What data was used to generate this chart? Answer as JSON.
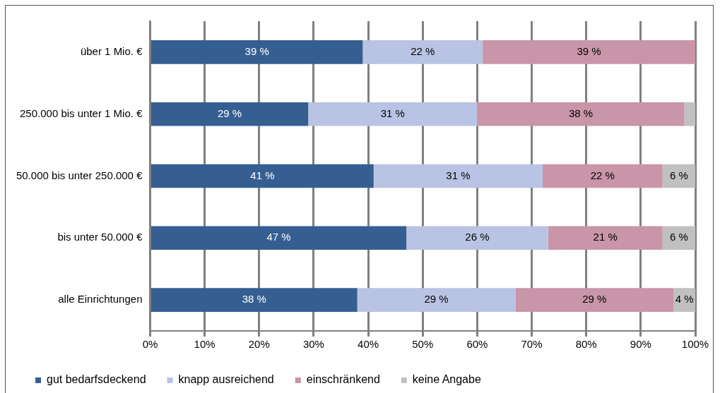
{
  "chart_data": {
    "type": "bar",
    "orientation": "horizontal",
    "stacked": true,
    "categories": [
      "über 1 Mio. €",
      "250.000 bis unter 1 Mio. €",
      "50.000 bis unter 250.000 €",
      "bis unter 50.000 €",
      "alle Einrichtungen"
    ],
    "series": [
      {
        "name": "gut bedarfsdeckend",
        "color": "#365f91",
        "values": [
          39,
          29,
          41,
          47,
          38
        ],
        "value_labels": [
          "39 %",
          "29 %",
          "41 %",
          "47 %",
          "38 %"
        ]
      },
      {
        "name": "knapp ausreichend",
        "color": "#b9c3e3",
        "values": [
          22,
          31,
          31,
          26,
          29
        ],
        "value_labels": [
          "22 %",
          "31 %",
          "31 %",
          "26 %",
          "29 %"
        ]
      },
      {
        "name": "einschränkend",
        "color": "#c995a8",
        "values": [
          39,
          38,
          22,
          21,
          29
        ],
        "value_labels": [
          "39 %",
          "38 %",
          "22 %",
          "21 %",
          "29 %"
        ]
      },
      {
        "name": "keine Angabe",
        "color": "#c0c0c0",
        "values": [
          0,
          2,
          6,
          6,
          4
        ],
        "value_labels": [
          null,
          null,
          "6 %",
          "6 %",
          "4 %"
        ]
      }
    ],
    "xlim": [
      0,
      100
    ],
    "xticks": [
      {
        "value": 0,
        "label": "0%"
      },
      {
        "value": 10,
        "label": "10%"
      },
      {
        "value": 20,
        "label": "20%"
      },
      {
        "value": 30,
        "label": "30%"
      },
      {
        "value": 40,
        "label": "40%"
      },
      {
        "value": 50,
        "label": "50%"
      },
      {
        "value": 60,
        "label": "60%"
      },
      {
        "value": 70,
        "label": "70%"
      },
      {
        "value": 80,
        "label": "80%"
      },
      {
        "value": 90,
        "label": "90%"
      },
      {
        "value": 100,
        "label": "100%"
      }
    ],
    "grid": "x",
    "legend": "bottom left"
  }
}
